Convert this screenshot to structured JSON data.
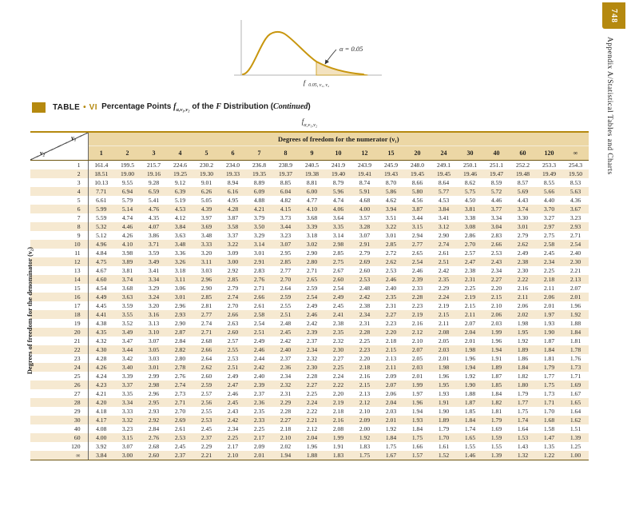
{
  "page": {
    "page_number": "748",
    "sidebar_text": "Appendix A/Statistical Tables and Charts"
  },
  "figure": {
    "alpha_label": "α = 0.05",
    "axis_f": "f",
    "axis_f_sub": "0.05, ν₁, ν₂"
  },
  "table": {
    "title": {
      "label": "TABLE",
      "bullet": "•",
      "number": "VI",
      "text_before_f": "Percentage Points ",
      "f": "f",
      "f_sub": "α,ν₁,ν₂",
      "text_mid": " of the ",
      "F": "F",
      "text_after": " Distribution (",
      "continued": "Continued",
      "close_paren": ")"
    },
    "notation_f": "f",
    "notation_sub": "α,ν₁,ν₂",
    "denominator_label": "Degrees of freedom for the denominator (ν₂)",
    "header": {
      "numerator_label": "Degrees of freedom for the numerator (ν₁)",
      "v1_label": "ν₁",
      "v2_label": "ν₂",
      "columns": [
        "1",
        "2",
        "3",
        "4",
        "5",
        "6",
        "7",
        "8",
        "9",
        "10",
        "12",
        "15",
        "20",
        "24",
        "30",
        "40",
        "60",
        "120",
        "∞"
      ]
    },
    "rows": [
      {
        "label": "1",
        "values": [
          "161.4",
          "199.5",
          "215.7",
          "224.6",
          "230.2",
          "234.0",
          "236.8",
          "238.9",
          "240.5",
          "241.9",
          "243.9",
          "245.9",
          "248.0",
          "249.1",
          "250.1",
          "251.1",
          "252.2",
          "253.3",
          "254.3"
        ]
      },
      {
        "label": "2",
        "values": [
          "18.51",
          "19.00",
          "19.16",
          "19.25",
          "19.30",
          "19.33",
          "19.35",
          "19.37",
          "19.38",
          "19.40",
          "19.41",
          "19.43",
          "19.45",
          "19.45",
          "19.46",
          "19.47",
          "19.48",
          "19.49",
          "19.50"
        ]
      },
      {
        "label": "3",
        "values": [
          "10.13",
          "9.55",
          "9.28",
          "9.12",
          "9.01",
          "8.94",
          "8.89",
          "8.85",
          "8.81",
          "8.79",
          "8.74",
          "8.70",
          "8.66",
          "8.64",
          "8.62",
          "8.59",
          "8.57",
          "8.55",
          "8.53"
        ]
      },
      {
        "label": "4",
        "values": [
          "7.71",
          "6.94",
          "6.59",
          "6.39",
          "6.26",
          "6.16",
          "6.09",
          "6.04",
          "6.00",
          "5.96",
          "5.91",
          "5.86",
          "5.80",
          "5.77",
          "5.75",
          "5.72",
          "5.69",
          "5.66",
          "5.63"
        ]
      },
      {
        "label": "5",
        "values": [
          "6.61",
          "5.79",
          "5.41",
          "5.19",
          "5.05",
          "4.95",
          "4.88",
          "4.82",
          "4.77",
          "4.74",
          "4.68",
          "4.62",
          "4.56",
          "4.53",
          "4.50",
          "4.46",
          "4.43",
          "4.40",
          "4.36"
        ]
      },
      {
        "label": "6",
        "values": [
          "5.99",
          "5.14",
          "4.76",
          "4.53",
          "4.39",
          "4.28",
          "4.21",
          "4.15",
          "4.10",
          "4.06",
          "4.00",
          "3.94",
          "3.87",
          "3.84",
          "3.81",
          "3.77",
          "3.74",
          "3.70",
          "3.67"
        ]
      },
      {
        "label": "7",
        "values": [
          "5.59",
          "4.74",
          "4.35",
          "4.12",
          "3.97",
          "3.87",
          "3.79",
          "3.73",
          "3.68",
          "3.64",
          "3.57",
          "3.51",
          "3.44",
          "3.41",
          "3.38",
          "3.34",
          "3.30",
          "3.27",
          "3.23"
        ]
      },
      {
        "label": "8",
        "values": [
          "5.32",
          "4.46",
          "4.07",
          "3.84",
          "3.69",
          "3.58",
          "3.50",
          "3.44",
          "3.39",
          "3.35",
          "3.28",
          "3.22",
          "3.15",
          "3.12",
          "3.08",
          "3.04",
          "3.01",
          "2.97",
          "2.93"
        ]
      },
      {
        "label": "9",
        "values": [
          "5.12",
          "4.26",
          "3.86",
          "3.63",
          "3.48",
          "3.37",
          "3.29",
          "3.23",
          "3.18",
          "3.14",
          "3.07",
          "3.01",
          "2.94",
          "2.90",
          "2.86",
          "2.83",
          "2.79",
          "2.75",
          "2.71"
        ]
      },
      {
        "label": "10",
        "values": [
          "4.96",
          "4.10",
          "3.71",
          "3.48",
          "3.33",
          "3.22",
          "3.14",
          "3.07",
          "3.02",
          "2.98",
          "2.91",
          "2.85",
          "2.77",
          "2.74",
          "2.70",
          "2.66",
          "2.62",
          "2.58",
          "2.54"
        ]
      },
      {
        "label": "11",
        "values": [
          "4.84",
          "3.98",
          "3.59",
          "3.36",
          "3.20",
          "3.09",
          "3.01",
          "2.95",
          "2.90",
          "2.85",
          "2.79",
          "2.72",
          "2.65",
          "2.61",
          "2.57",
          "2.53",
          "2.49",
          "2.45",
          "2.40"
        ]
      },
      {
        "label": "12",
        "values": [
          "4.75",
          "3.89",
          "3.49",
          "3.26",
          "3.11",
          "3.00",
          "2.91",
          "2.85",
          "2.80",
          "2.75",
          "2.69",
          "2.62",
          "2.54",
          "2.51",
          "2.47",
          "2.43",
          "2.38",
          "2.34",
          "2.30"
        ]
      },
      {
        "label": "13",
        "values": [
          "4.67",
          "3.81",
          "3.41",
          "3.18",
          "3.03",
          "2.92",
          "2.83",
          "2.77",
          "2.71",
          "2.67",
          "2.60",
          "2.53",
          "2.46",
          "2.42",
          "2.38",
          "2.34",
          "2.30",
          "2.25",
          "2.21"
        ]
      },
      {
        "label": "14",
        "values": [
          "4.60",
          "3.74",
          "3.34",
          "3.11",
          "2.96",
          "2.85",
          "2.76",
          "2.70",
          "2.65",
          "2.60",
          "2.53",
          "2.46",
          "2.39",
          "2.35",
          "2.31",
          "2.27",
          "2.22",
          "2.18",
          "2.13"
        ]
      },
      {
        "label": "15",
        "values": [
          "4.54",
          "3.68",
          "3.29",
          "3.06",
          "2.90",
          "2.79",
          "2.71",
          "2.64",
          "2.59",
          "2.54",
          "2.48",
          "2.40",
          "2.33",
          "2.29",
          "2.25",
          "2.20",
          "2.16",
          "2.11",
          "2.07"
        ]
      },
      {
        "label": "16",
        "values": [
          "4.49",
          "3.63",
          "3.24",
          "3.01",
          "2.85",
          "2.74",
          "2.66",
          "2.59",
          "2.54",
          "2.49",
          "2.42",
          "2.35",
          "2.28",
          "2.24",
          "2.19",
          "2.15",
          "2.11",
          "2.06",
          "2.01"
        ]
      },
      {
        "label": "17",
        "values": [
          "4.45",
          "3.59",
          "3.20",
          "2.96",
          "2.81",
          "2.70",
          "2.61",
          "2.55",
          "2.49",
          "2.45",
          "2.38",
          "2.31",
          "2.23",
          "2.19",
          "2.15",
          "2.10",
          "2.06",
          "2.01",
          "1.96"
        ]
      },
      {
        "label": "18",
        "values": [
          "4.41",
          "3.55",
          "3.16",
          "2.93",
          "2.77",
          "2.66",
          "2.58",
          "2.51",
          "2.46",
          "2.41",
          "2.34",
          "2.27",
          "2.19",
          "2.15",
          "2.11",
          "2.06",
          "2.02",
          "1.97",
          "1.92"
        ]
      },
      {
        "label": "19",
        "values": [
          "4.38",
          "3.52",
          "3.13",
          "2.90",
          "2.74",
          "2.63",
          "2.54",
          "2.48",
          "2.42",
          "2.38",
          "2.31",
          "2.23",
          "2.16",
          "2.11",
          "2.07",
          "2.03",
          "1.98",
          "1.93",
          "1.88"
        ]
      },
      {
        "label": "20",
        "values": [
          "4.35",
          "3.49",
          "3.10",
          "2.87",
          "2.71",
          "2.60",
          "2.51",
          "2.45",
          "2.39",
          "2.35",
          "2.28",
          "2.20",
          "2.12",
          "2.08",
          "2.04",
          "1.99",
          "1.95",
          "1.90",
          "1.84"
        ]
      },
      {
        "label": "21",
        "values": [
          "4.32",
          "3.47",
          "3.07",
          "2.84",
          "2.68",
          "2.57",
          "2.49",
          "2.42",
          "2.37",
          "2.32",
          "2.25",
          "2.18",
          "2.10",
          "2.05",
          "2.01",
          "1.96",
          "1.92",
          "1.87",
          "1.81"
        ]
      },
      {
        "label": "22",
        "values": [
          "4.30",
          "3.44",
          "3.05",
          "2.82",
          "2.66",
          "2.55",
          "2.46",
          "2.40",
          "2.34",
          "2.30",
          "2.23",
          "2.15",
          "2.07",
          "2.03",
          "1.98",
          "1.94",
          "1.89",
          "1.84",
          "1.78"
        ]
      },
      {
        "label": "23",
        "values": [
          "4.28",
          "3.42",
          "3.03",
          "2.80",
          "2.64",
          "2.53",
          "2.44",
          "2.37",
          "2.32",
          "2.27",
          "2.20",
          "2.13",
          "2.05",
          "2.01",
          "1.96",
          "1.91",
          "1.86",
          "1.81",
          "1.76"
        ]
      },
      {
        "label": "24",
        "values": [
          "4.26",
          "3.40",
          "3.01",
          "2.78",
          "2.62",
          "2.51",
          "2.42",
          "2.36",
          "2.30",
          "2.25",
          "2.18",
          "2.11",
          "2.03",
          "1.98",
          "1.94",
          "1.89",
          "1.84",
          "1.79",
          "1.73"
        ]
      },
      {
        "label": "25",
        "values": [
          "4.24",
          "3.39",
          "2.99",
          "2.76",
          "2.60",
          "2.49",
          "2.40",
          "2.34",
          "2.28",
          "2.24",
          "2.16",
          "2.09",
          "2.01",
          "1.96",
          "1.92",
          "1.87",
          "1.82",
          "1.77",
          "1.71"
        ]
      },
      {
        "label": "26",
        "values": [
          "4.23",
          "3.37",
          "2.98",
          "2.74",
          "2.59",
          "2.47",
          "2.39",
          "2.32",
          "2.27",
          "2.22",
          "2.15",
          "2.07",
          "1.99",
          "1.95",
          "1.90",
          "1.85",
          "1.80",
          "1.75",
          "1.69"
        ]
      },
      {
        "label": "27",
        "values": [
          "4.21",
          "3.35",
          "2.96",
          "2.73",
          "2.57",
          "2.46",
          "2.37",
          "2.31",
          "2.25",
          "2.20",
          "2.13",
          "2.06",
          "1.97",
          "1.93",
          "1.88",
          "1.84",
          "1.79",
          "1.73",
          "1.67"
        ]
      },
      {
        "label": "28",
        "values": [
          "4.20",
          "3.34",
          "2.95",
          "2.71",
          "2.56",
          "2.45",
          "2.36",
          "2.29",
          "2.24",
          "2.19",
          "2.12",
          "2.04",
          "1.96",
          "1.91",
          "1.87",
          "1.82",
          "1.77",
          "1.71",
          "1.65"
        ]
      },
      {
        "label": "29",
        "values": [
          "4.18",
          "3.33",
          "2.93",
          "2.70",
          "2.55",
          "2.43",
          "2.35",
          "2.28",
          "2.22",
          "2.18",
          "2.10",
          "2.03",
          "1.94",
          "1.90",
          "1.85",
          "1.81",
          "1.75",
          "1.70",
          "1.64"
        ]
      },
      {
        "label": "30",
        "values": [
          "4.17",
          "3.32",
          "2.92",
          "2.69",
          "2.53",
          "2.42",
          "2.33",
          "2.27",
          "2.21",
          "2.16",
          "2.09",
          "2.01",
          "1.93",
          "1.89",
          "1.84",
          "1.79",
          "1.74",
          "1.68",
          "1.62"
        ]
      },
      {
        "label": "40",
        "values": [
          "4.08",
          "3.23",
          "2.84",
          "2.61",
          "2.45",
          "2.34",
          "2.25",
          "2.18",
          "2.12",
          "2.08",
          "2.00",
          "1.92",
          "1.84",
          "1.79",
          "1.74",
          "1.69",
          "1.64",
          "1.58",
          "1.51"
        ]
      },
      {
        "label": "60",
        "values": [
          "4.00",
          "3.15",
          "2.76",
          "2.53",
          "2.37",
          "2.25",
          "2.17",
          "2.10",
          "2.04",
          "1.99",
          "1.92",
          "1.84",
          "1.75",
          "1.70",
          "1.65",
          "1.59",
          "1.53",
          "1.47",
          "1.39"
        ]
      },
      {
        "label": "120",
        "values": [
          "3.92",
          "3.07",
          "2.68",
          "2.45",
          "2.29",
          "2.17",
          "2.09",
          "2.02",
          "1.96",
          "1.91",
          "1.83",
          "1.75",
          "1.66",
          "1.61",
          "1.55",
          "1.55",
          "1.43",
          "1.35",
          "1.25"
        ]
      },
      {
        "label": "∞",
        "values": [
          "3.84",
          "3.00",
          "2.60",
          "2.37",
          "2.21",
          "2.10",
          "2.01",
          "1.94",
          "1.88",
          "1.83",
          "1.75",
          "1.67",
          "1.57",
          "1.52",
          "1.46",
          "1.39",
          "1.32",
          "1.22",
          "1.00"
        ]
      }
    ]
  }
}
